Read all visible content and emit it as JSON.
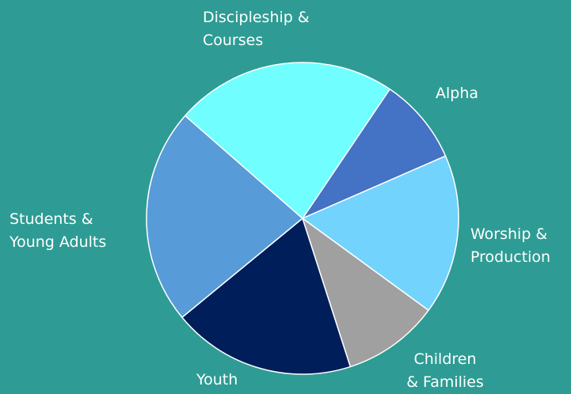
{
  "chart_data": {
    "type": "pie",
    "title": "",
    "slices": [
      {
        "label_lines": [
          "Alpha"
        ],
        "value": 9.0,
        "color": "#4472c4"
      },
      {
        "label_lines": [
          "Worship &",
          "Production"
        ],
        "value": 16.6,
        "color": "#72d3fc"
      },
      {
        "label_lines": [
          "Children",
          "& Families"
        ],
        "value": 10.0,
        "color": "#a0a0a0"
      },
      {
        "label_lines": [
          "Youth"
        ],
        "value": 19.0,
        "color": "#001e5a"
      },
      {
        "label_lines": [
          "Students &",
          "Young Adults"
        ],
        "value": 22.4,
        "color": "#579bd8"
      },
      {
        "label_lines": [
          "Discipleship &",
          "Courses"
        ],
        "value": 23.0,
        "color": "#70feff"
      }
    ],
    "slice_border_color": "#ffffff"
  }
}
